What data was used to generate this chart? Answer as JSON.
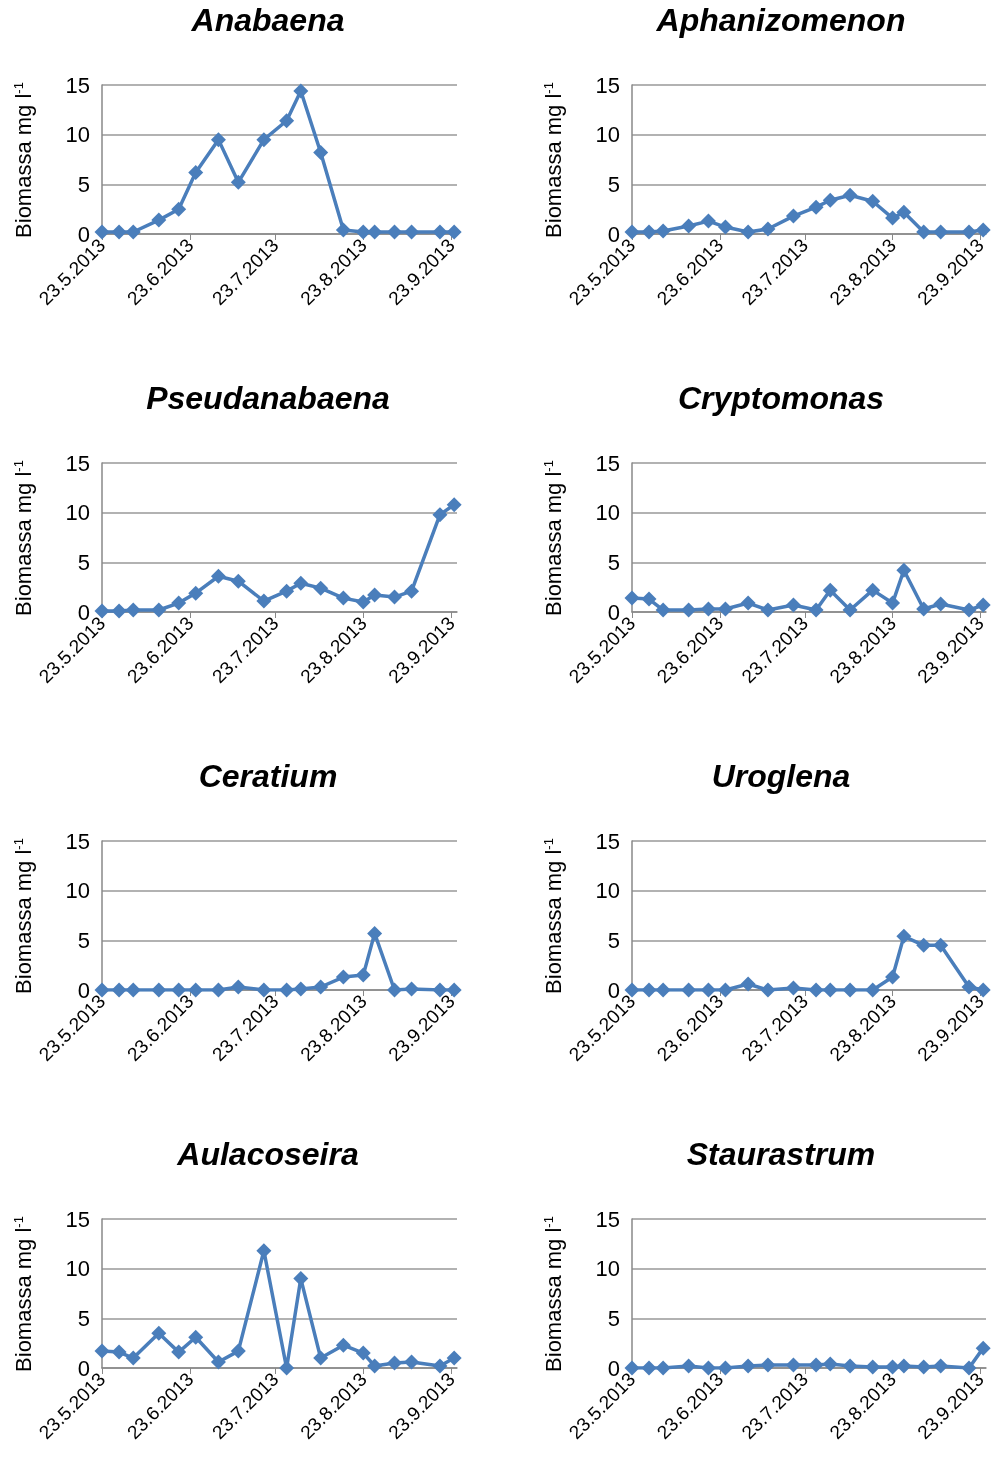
{
  "chart_data": [
    {
      "type": "line",
      "title": "Anabaena",
      "ylabel": "Biomassa mg l$^{-1}$",
      "x": [
        "2013-05-23",
        "2013-05-29",
        "2013-06-03",
        "2013-06-12",
        "2013-06-19",
        "2013-06-25",
        "2013-07-03",
        "2013-07-10",
        "2013-07-19",
        "2013-07-27",
        "2013-08-01",
        "2013-08-08",
        "2013-08-16",
        "2013-08-23",
        "2013-08-27",
        "2013-09-03",
        "2013-09-09",
        "2013-09-19",
        "2013-09-24"
      ],
      "series": [
        {
          "color": "#4a7ebb",
          "values": [
            0.2,
            0.2,
            0.2,
            1.4,
            2.5,
            6.2,
            9.5,
            5.2,
            9.5,
            11.4,
            14.4,
            8.2,
            0.4,
            0.2,
            0.2,
            0.2,
            0.2,
            0.2,
            0.2
          ]
        }
      ],
      "xlim": [
        "2013-05-23",
        "2013-09-25"
      ],
      "xticks": [
        {
          "value": "2013-05-23",
          "label": "23.5.2013"
        },
        {
          "value": "2013-06-23",
          "label": "23.6.2013"
        },
        {
          "value": "2013-07-23",
          "label": "23.7.2013"
        },
        {
          "value": "2013-08-23",
          "label": "23.8.2013"
        },
        {
          "value": "2013-09-23",
          "label": "23.9.2013"
        }
      ],
      "ylim": [
        0,
        15
      ],
      "yticks": [
        0,
        5,
        10,
        15
      ],
      "grid": "y",
      "marker": "diamond",
      "line_style": "solid"
    },
    {
      "type": "line",
      "title": "Aphanizomenon",
      "ylabel": "Biomassa mg l$^{-1}$",
      "x": [
        "2013-05-23",
        "2013-05-29",
        "2013-06-03",
        "2013-06-12",
        "2013-06-19",
        "2013-06-25",
        "2013-07-03",
        "2013-07-10",
        "2013-07-19",
        "2013-07-27",
        "2013-08-01",
        "2013-08-08",
        "2013-08-16",
        "2013-08-23",
        "2013-08-27",
        "2013-09-03",
        "2013-09-09",
        "2013-09-19",
        "2013-09-24"
      ],
      "series": [
        {
          "color": "#4a7ebb",
          "values": [
            0.2,
            0.2,
            0.3,
            0.8,
            1.3,
            0.7,
            0.2,
            0.5,
            1.8,
            2.7,
            3.4,
            3.9,
            3.3,
            1.6,
            2.2,
            0.2,
            0.2,
            0.2,
            0.4
          ]
        }
      ],
      "xlim": [
        "2013-05-23",
        "2013-09-25"
      ],
      "xticks": [
        {
          "value": "2013-05-23",
          "label": "23.5.2013"
        },
        {
          "value": "2013-06-23",
          "label": "23.6.2013"
        },
        {
          "value": "2013-07-23",
          "label": "23.7.2013"
        },
        {
          "value": "2013-08-23",
          "label": "23.8.2013"
        },
        {
          "value": "2013-09-23",
          "label": "23.9.2013"
        }
      ],
      "ylim": [
        0,
        15
      ],
      "yticks": [
        0,
        5,
        10,
        15
      ],
      "grid": "y",
      "marker": "diamond",
      "line_style": "solid"
    },
    {
      "type": "line",
      "title": "Pseudanabaena",
      "ylabel": "Biomassa mg l$^{-1}$",
      "x": [
        "2013-05-23",
        "2013-05-29",
        "2013-06-03",
        "2013-06-12",
        "2013-06-19",
        "2013-06-25",
        "2013-07-03",
        "2013-07-10",
        "2013-07-19",
        "2013-07-27",
        "2013-08-01",
        "2013-08-08",
        "2013-08-16",
        "2013-08-23",
        "2013-08-27",
        "2013-09-03",
        "2013-09-09",
        "2013-09-19",
        "2013-09-24"
      ],
      "series": [
        {
          "color": "#4a7ebb",
          "values": [
            0.1,
            0.1,
            0.2,
            0.2,
            0.9,
            1.9,
            3.6,
            3.1,
            1.1,
            2.1,
            2.9,
            2.4,
            1.4,
            1.0,
            1.7,
            1.5,
            2.1,
            9.8,
            10.8
          ]
        }
      ],
      "xlim": [
        "2013-05-23",
        "2013-09-25"
      ],
      "xticks": [
        {
          "value": "2013-05-23",
          "label": "23.5.2013"
        },
        {
          "value": "2013-06-23",
          "label": "23.6.2013"
        },
        {
          "value": "2013-07-23",
          "label": "23.7.2013"
        },
        {
          "value": "2013-08-23",
          "label": "23.8.2013"
        },
        {
          "value": "2013-09-23",
          "label": "23.9.2013"
        }
      ],
      "ylim": [
        0,
        15
      ],
      "yticks": [
        0,
        5,
        10,
        15
      ],
      "grid": "y",
      "marker": "diamond",
      "line_style": "solid"
    },
    {
      "type": "line",
      "title": "Cryptomonas",
      "ylabel": "Biomassa mg l$^{-1}$",
      "x": [
        "2013-05-23",
        "2013-05-29",
        "2013-06-03",
        "2013-06-12",
        "2013-06-19",
        "2013-06-25",
        "2013-07-03",
        "2013-07-10",
        "2013-07-19",
        "2013-07-27",
        "2013-08-01",
        "2013-08-08",
        "2013-08-16",
        "2013-08-23",
        "2013-08-27",
        "2013-09-03",
        "2013-09-09",
        "2013-09-19",
        "2013-09-24"
      ],
      "series": [
        {
          "color": "#4a7ebb",
          "values": [
            1.4,
            1.3,
            0.2,
            0.2,
            0.3,
            0.3,
            0.9,
            0.2,
            0.7,
            0.2,
            2.2,
            0.2,
            2.2,
            0.9,
            4.2,
            0.3,
            0.8,
            0.2,
            0.7
          ]
        }
      ],
      "xlim": [
        "2013-05-23",
        "2013-09-25"
      ],
      "xticks": [
        {
          "value": "2013-05-23",
          "label": "23.5.2013"
        },
        {
          "value": "2013-06-23",
          "label": "23.6.2013"
        },
        {
          "value": "2013-07-23",
          "label": "23.7.2013"
        },
        {
          "value": "2013-08-23",
          "label": "23.8.2013"
        },
        {
          "value": "2013-09-23",
          "label": "23.9.2013"
        }
      ],
      "ylim": [
        0,
        15
      ],
      "yticks": [
        0,
        5,
        10,
        15
      ],
      "grid": "y",
      "marker": "diamond",
      "line_style": "solid"
    },
    {
      "type": "line",
      "title": "Ceratium",
      "ylabel": "Biomassa mg l$^{-1}$",
      "x": [
        "2013-05-23",
        "2013-05-29",
        "2013-06-03",
        "2013-06-12",
        "2013-06-19",
        "2013-06-25",
        "2013-07-03",
        "2013-07-10",
        "2013-07-19",
        "2013-07-27",
        "2013-08-01",
        "2013-08-08",
        "2013-08-16",
        "2013-08-23",
        "2013-08-27",
        "2013-09-03",
        "2013-09-09",
        "2013-09-19",
        "2013-09-24"
      ],
      "series": [
        {
          "color": "#4a7ebb",
          "values": [
            0,
            0,
            0,
            0,
            0,
            0,
            0,
            0.3,
            0,
            0,
            0.1,
            0.3,
            1.3,
            1.5,
            5.7,
            0,
            0.1,
            0,
            0
          ]
        }
      ],
      "xlim": [
        "2013-05-23",
        "2013-09-25"
      ],
      "xticks": [
        {
          "value": "2013-05-23",
          "label": "23.5.2013"
        },
        {
          "value": "2013-06-23",
          "label": "23.6.2013"
        },
        {
          "value": "2013-07-23",
          "label": "23.7.2013"
        },
        {
          "value": "2013-08-23",
          "label": "23.8.2013"
        },
        {
          "value": "2013-09-23",
          "label": "23.9.2013"
        }
      ],
      "ylim": [
        0,
        15
      ],
      "yticks": [
        0,
        5,
        10,
        15
      ],
      "grid": "y",
      "marker": "diamond",
      "line_style": "solid"
    },
    {
      "type": "line",
      "title": "Uroglena",
      "ylabel": "Biomassa mg l$^{-1}$",
      "x": [
        "2013-05-23",
        "2013-05-29",
        "2013-06-03",
        "2013-06-12",
        "2013-06-19",
        "2013-06-25",
        "2013-07-03",
        "2013-07-10",
        "2013-07-19",
        "2013-07-27",
        "2013-08-01",
        "2013-08-08",
        "2013-08-16",
        "2013-08-23",
        "2013-08-27",
        "2013-09-03",
        "2013-09-09",
        "2013-09-19",
        "2013-09-24"
      ],
      "series": [
        {
          "color": "#4a7ebb",
          "values": [
            0,
            0,
            0,
            0,
            0,
            0,
            0.6,
            0,
            0.2,
            0,
            0,
            0,
            0,
            1.3,
            5.4,
            4.5,
            4.5,
            0.3,
            0
          ]
        }
      ],
      "xlim": [
        "2013-05-23",
        "2013-09-25"
      ],
      "xticks": [
        {
          "value": "2013-05-23",
          "label": "23.5.2013"
        },
        {
          "value": "2013-06-23",
          "label": "23.6.2013"
        },
        {
          "value": "2013-07-23",
          "label": "23.7.2013"
        },
        {
          "value": "2013-08-23",
          "label": "23.8.2013"
        },
        {
          "value": "2013-09-23",
          "label": "23.9.2013"
        }
      ],
      "ylim": [
        0,
        15
      ],
      "yticks": [
        0,
        5,
        10,
        15
      ],
      "grid": "y",
      "marker": "diamond",
      "line_style": "solid"
    },
    {
      "type": "line",
      "title": "Aulacoseira",
      "ylabel": "Biomassa mg l$^{-1}$",
      "x": [
        "2013-05-23",
        "2013-05-29",
        "2013-06-03",
        "2013-06-12",
        "2013-06-19",
        "2013-06-25",
        "2013-07-03",
        "2013-07-10",
        "2013-07-19",
        "2013-07-27",
        "2013-08-01",
        "2013-08-08",
        "2013-08-16",
        "2013-08-23",
        "2013-08-27",
        "2013-09-03",
        "2013-09-09",
        "2013-09-19",
        "2013-09-24"
      ],
      "series": [
        {
          "color": "#4a7ebb",
          "values": [
            1.7,
            1.6,
            1.0,
            3.5,
            1.6,
            3.1,
            0.6,
            1.7,
            11.8,
            0,
            9.0,
            1.0,
            2.3,
            1.5,
            0.2,
            0.5,
            0.6,
            0.2,
            1.0
          ]
        }
      ],
      "xlim": [
        "2013-05-23",
        "2013-09-25"
      ],
      "xticks": [
        {
          "value": "2013-05-23",
          "label": "23.5.2013"
        },
        {
          "value": "2013-06-23",
          "label": "23.6.2013"
        },
        {
          "value": "2013-07-23",
          "label": "23.7.2013"
        },
        {
          "value": "2013-08-23",
          "label": "23.8.2013"
        },
        {
          "value": "2013-09-23",
          "label": "23.9.2013"
        }
      ],
      "ylim": [
        0,
        15
      ],
      "yticks": [
        0,
        5,
        10,
        15
      ],
      "grid": "y",
      "marker": "diamond",
      "line_style": "solid"
    },
    {
      "type": "line",
      "title": "Staurastrum",
      "ylabel": "Biomassa mg l$^{-1}$",
      "x": [
        "2013-05-23",
        "2013-05-29",
        "2013-06-03",
        "2013-06-12",
        "2013-06-19",
        "2013-06-25",
        "2013-07-03",
        "2013-07-10",
        "2013-07-19",
        "2013-07-27",
        "2013-08-01",
        "2013-08-08",
        "2013-08-16",
        "2013-08-23",
        "2013-08-27",
        "2013-09-03",
        "2013-09-09",
        "2013-09-19",
        "2013-09-24"
      ],
      "series": [
        {
          "color": "#4a7ebb",
          "values": [
            0,
            0,
            0,
            0.2,
            0,
            0,
            0.2,
            0.3,
            0.3,
            0.3,
            0.4,
            0.2,
            0.1,
            0.1,
            0.2,
            0.1,
            0.2,
            0,
            2.0
          ]
        }
      ],
      "xlim": [
        "2013-05-23",
        "2013-09-25"
      ],
      "xticks": [
        {
          "value": "2013-05-23",
          "label": "23.5.2013"
        },
        {
          "value": "2013-06-23",
          "label": "23.6.2013"
        },
        {
          "value": "2013-07-23",
          "label": "23.7.2013"
        },
        {
          "value": "2013-08-23",
          "label": "23.8.2013"
        },
        {
          "value": "2013-09-23",
          "label": "23.9.2013"
        }
      ],
      "ylim": [
        0,
        15
      ],
      "yticks": [
        0,
        5,
        10,
        15
      ],
      "grid": "y",
      "marker": "diamond",
      "line_style": "solid"
    }
  ]
}
